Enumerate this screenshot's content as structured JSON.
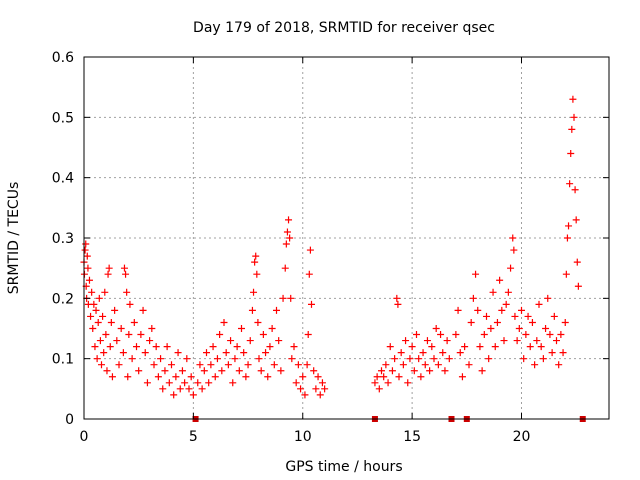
{
  "chart_data": {
    "type": "scatter",
    "title": "Day 179 of 2018, SRMTID for receiver qsec",
    "xlabel": "GPS time / hours",
    "ylabel": "SRMTID / TECUs",
    "xlim": [
      0,
      24
    ],
    "ylim": [
      0,
      0.6
    ],
    "x_ticks": [
      0,
      5,
      10,
      15,
      20
    ],
    "y_ticks": [
      0,
      0.1,
      0.2,
      0.3,
      0.4,
      0.5,
      0.6
    ],
    "x_tick_labels": [
      "0",
      "5",
      "10",
      "15",
      "20"
    ],
    "y_tick_labels": [
      "0",
      "0.1",
      "0.2",
      "0.3",
      "0.4",
      "0.5",
      "0.6"
    ],
    "grid": true,
    "marker": "+",
    "color": "#ff0000",
    "outage_marker_color": "#cc0000",
    "outage_markers_x": [
      5.1,
      13.3,
      16.8,
      17.5,
      22.8
    ],
    "series": [
      {
        "name": "SRMTID",
        "points": [
          [
            0.0,
            0.26
          ],
          [
            0.02,
            0.24
          ],
          [
            0.05,
            0.28
          ],
          [
            0.08,
            0.29
          ],
          [
            0.1,
            0.22
          ],
          [
            0.12,
            0.2
          ],
          [
            0.15,
            0.27
          ],
          [
            0.18,
            0.25
          ],
          [
            0.2,
            0.19
          ],
          [
            0.25,
            0.23
          ],
          [
            0.3,
            0.17
          ],
          [
            0.35,
            0.21
          ],
          [
            0.4,
            0.15
          ],
          [
            0.45,
            0.19
          ],
          [
            0.5,
            0.12
          ],
          [
            0.55,
            0.18
          ],
          [
            0.6,
            0.1
          ],
          [
            0.65,
            0.16
          ],
          [
            0.7,
            0.2
          ],
          [
            0.75,
            0.13
          ],
          [
            0.8,
            0.09
          ],
          [
            0.85,
            0.17
          ],
          [
            0.9,
            0.11
          ],
          [
            0.95,
            0.21
          ],
          [
            1.0,
            0.14
          ],
          [
            1.05,
            0.08
          ],
          [
            1.1,
            0.24
          ],
          [
            1.15,
            0.25
          ],
          [
            1.2,
            0.12
          ],
          [
            1.25,
            0.16
          ],
          [
            1.3,
            0.07
          ],
          [
            1.4,
            0.18
          ],
          [
            1.5,
            0.13
          ],
          [
            1.6,
            0.09
          ],
          [
            1.7,
            0.15
          ],
          [
            1.8,
            0.11
          ],
          [
            1.85,
            0.25
          ],
          [
            1.9,
            0.24
          ],
          [
            1.95,
            0.21
          ],
          [
            2.0,
            0.07
          ],
          [
            2.05,
            0.14
          ],
          [
            2.1,
            0.19
          ],
          [
            2.2,
            0.1
          ],
          [
            2.3,
            0.16
          ],
          [
            2.4,
            0.12
          ],
          [
            2.5,
            0.08
          ],
          [
            2.6,
            0.14
          ],
          [
            2.7,
            0.18
          ],
          [
            2.8,
            0.11
          ],
          [
            2.9,
            0.06
          ],
          [
            3.0,
            0.13
          ],
          [
            3.1,
            0.15
          ],
          [
            3.2,
            0.09
          ],
          [
            3.3,
            0.12
          ],
          [
            3.4,
            0.07
          ],
          [
            3.5,
            0.1
          ],
          [
            3.6,
            0.05
          ],
          [
            3.7,
            0.08
          ],
          [
            3.8,
            0.12
          ],
          [
            3.9,
            0.06
          ],
          [
            4.0,
            0.09
          ],
          [
            4.1,
            0.04
          ],
          [
            4.2,
            0.07
          ],
          [
            4.3,
            0.11
          ],
          [
            4.4,
            0.05
          ],
          [
            4.5,
            0.08
          ],
          [
            4.6,
            0.06
          ],
          [
            4.7,
            0.1
          ],
          [
            4.8,
            0.05
          ],
          [
            4.9,
            0.07
          ],
          [
            5.0,
            0.04
          ],
          [
            5.2,
            0.06
          ],
          [
            5.3,
            0.09
          ],
          [
            5.4,
            0.05
          ],
          [
            5.5,
            0.08
          ],
          [
            5.6,
            0.11
          ],
          [
            5.7,
            0.06
          ],
          [
            5.8,
            0.09
          ],
          [
            5.9,
            0.12
          ],
          [
            6.0,
            0.07
          ],
          [
            6.1,
            0.1
          ],
          [
            6.2,
            0.14
          ],
          [
            6.3,
            0.08
          ],
          [
            6.4,
            0.16
          ],
          [
            6.5,
            0.11
          ],
          [
            6.6,
            0.09
          ],
          [
            6.7,
            0.13
          ],
          [
            6.8,
            0.06
          ],
          [
            6.9,
            0.1
          ],
          [
            7.0,
            0.12
          ],
          [
            7.1,
            0.08
          ],
          [
            7.2,
            0.15
          ],
          [
            7.3,
            0.11
          ],
          [
            7.4,
            0.07
          ],
          [
            7.5,
            0.09
          ],
          [
            7.6,
            0.13
          ],
          [
            7.7,
            0.18
          ],
          [
            7.75,
            0.21
          ],
          [
            7.8,
            0.26
          ],
          [
            7.85,
            0.27
          ],
          [
            7.9,
            0.24
          ],
          [
            7.95,
            0.16
          ],
          [
            8.0,
            0.1
          ],
          [
            8.1,
            0.08
          ],
          [
            8.2,
            0.14
          ],
          [
            8.3,
            0.11
          ],
          [
            8.4,
            0.07
          ],
          [
            8.5,
            0.12
          ],
          [
            8.6,
            0.15
          ],
          [
            8.7,
            0.09
          ],
          [
            8.8,
            0.18
          ],
          [
            8.9,
            0.13
          ],
          [
            9.0,
            0.08
          ],
          [
            9.1,
            0.2
          ],
          [
            9.2,
            0.25
          ],
          [
            9.25,
            0.29
          ],
          [
            9.3,
            0.31
          ],
          [
            9.35,
            0.33
          ],
          [
            9.4,
            0.3
          ],
          [
            9.45,
            0.2
          ],
          [
            9.5,
            0.1
          ],
          [
            9.6,
            0.12
          ],
          [
            9.7,
            0.06
          ],
          [
            9.8,
            0.09
          ],
          [
            9.9,
            0.05
          ],
          [
            10.0,
            0.07
          ],
          [
            10.1,
            0.04
          ],
          [
            10.2,
            0.09
          ],
          [
            10.25,
            0.14
          ],
          [
            10.3,
            0.24
          ],
          [
            10.35,
            0.28
          ],
          [
            10.4,
            0.19
          ],
          [
            10.5,
            0.08
          ],
          [
            10.6,
            0.05
          ],
          [
            10.7,
            0.07
          ],
          [
            10.8,
            0.04
          ],
          [
            10.9,
            0.06
          ],
          [
            11.0,
            0.05
          ],
          [
            13.3,
            0.06
          ],
          [
            13.4,
            0.07
          ],
          [
            13.5,
            0.05
          ],
          [
            13.6,
            0.08
          ],
          [
            13.7,
            0.07
          ],
          [
            13.8,
            0.09
          ],
          [
            13.9,
            0.06
          ],
          [
            14.0,
            0.12
          ],
          [
            14.1,
            0.08
          ],
          [
            14.2,
            0.1
          ],
          [
            14.3,
            0.2
          ],
          [
            14.35,
            0.19
          ],
          [
            14.4,
            0.07
          ],
          [
            14.5,
            0.11
          ],
          [
            14.6,
            0.09
          ],
          [
            14.7,
            0.13
          ],
          [
            14.8,
            0.06
          ],
          [
            14.9,
            0.1
          ],
          [
            15.0,
            0.12
          ],
          [
            15.1,
            0.08
          ],
          [
            15.2,
            0.14
          ],
          [
            15.3,
            0.1
          ],
          [
            15.4,
            0.07
          ],
          [
            15.5,
            0.11
          ],
          [
            15.6,
            0.09
          ],
          [
            15.7,
            0.13
          ],
          [
            15.8,
            0.08
          ],
          [
            15.9,
            0.12
          ],
          [
            16.0,
            0.1
          ],
          [
            16.1,
            0.15
          ],
          [
            16.2,
            0.09
          ],
          [
            16.3,
            0.14
          ],
          [
            16.4,
            0.11
          ],
          [
            16.5,
            0.08
          ],
          [
            16.6,
            0.13
          ],
          [
            16.7,
            0.1
          ],
          [
            17.0,
            0.14
          ],
          [
            17.1,
            0.18
          ],
          [
            17.2,
            0.11
          ],
          [
            17.3,
            0.07
          ],
          [
            17.4,
            0.12
          ],
          [
            17.6,
            0.09
          ],
          [
            17.7,
            0.16
          ],
          [
            17.8,
            0.2
          ],
          [
            17.9,
            0.24
          ],
          [
            18.0,
            0.18
          ],
          [
            18.1,
            0.12
          ],
          [
            18.2,
            0.08
          ],
          [
            18.3,
            0.14
          ],
          [
            18.4,
            0.17
          ],
          [
            18.5,
            0.1
          ],
          [
            18.6,
            0.15
          ],
          [
            18.7,
            0.21
          ],
          [
            18.8,
            0.12
          ],
          [
            18.9,
            0.16
          ],
          [
            19.0,
            0.23
          ],
          [
            19.1,
            0.18
          ],
          [
            19.2,
            0.13
          ],
          [
            19.3,
            0.19
          ],
          [
            19.4,
            0.21
          ],
          [
            19.5,
            0.25
          ],
          [
            19.6,
            0.3
          ],
          [
            19.65,
            0.28
          ],
          [
            19.7,
            0.17
          ],
          [
            19.8,
            0.13
          ],
          [
            19.9,
            0.15
          ],
          [
            20.0,
            0.18
          ],
          [
            20.1,
            0.1
          ],
          [
            20.2,
            0.14
          ],
          [
            20.3,
            0.17
          ],
          [
            20.4,
            0.12
          ],
          [
            20.5,
            0.16
          ],
          [
            20.6,
            0.09
          ],
          [
            20.7,
            0.13
          ],
          [
            20.8,
            0.19
          ],
          [
            20.9,
            0.12
          ],
          [
            21.0,
            0.1
          ],
          [
            21.1,
            0.15
          ],
          [
            21.2,
            0.2
          ],
          [
            21.3,
            0.14
          ],
          [
            21.4,
            0.11
          ],
          [
            21.5,
            0.17
          ],
          [
            21.6,
            0.13
          ],
          [
            21.7,
            0.09
          ],
          [
            21.8,
            0.14
          ],
          [
            21.9,
            0.11
          ],
          [
            22.0,
            0.16
          ],
          [
            22.05,
            0.24
          ],
          [
            22.1,
            0.3
          ],
          [
            22.15,
            0.32
          ],
          [
            22.2,
            0.39
          ],
          [
            22.25,
            0.44
          ],
          [
            22.3,
            0.48
          ],
          [
            22.35,
            0.53
          ],
          [
            22.4,
            0.5
          ],
          [
            22.45,
            0.38
          ],
          [
            22.5,
            0.33
          ],
          [
            22.55,
            0.26
          ],
          [
            22.6,
            0.22
          ]
        ]
      }
    ]
  }
}
